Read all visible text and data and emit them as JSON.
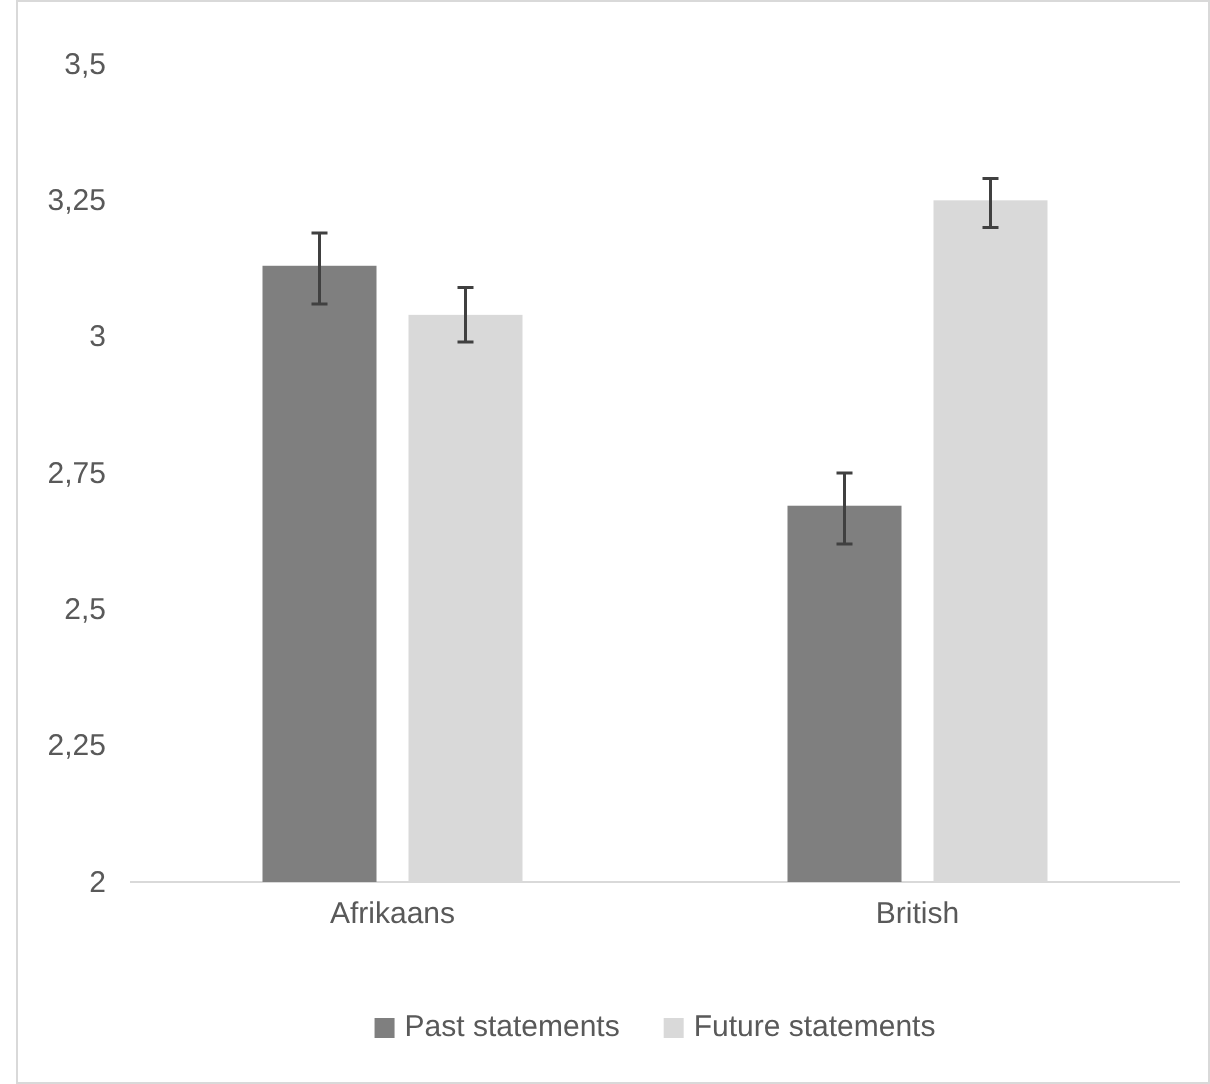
{
  "chart_data": {
    "type": "bar",
    "categories": [
      "Afrikaans",
      "British"
    ],
    "series": [
      {
        "name": "Past statements",
        "color": "#7f7f7f",
        "values": [
          3.13,
          2.69
        ],
        "errors": [
          [
            3.06,
            3.19
          ],
          [
            2.62,
            2.75
          ]
        ]
      },
      {
        "name": "Future statements",
        "color": "#d9d9d9",
        "values": [
          3.04,
          3.25
        ],
        "errors": [
          [
            2.99,
            3.09
          ],
          [
            3.2,
            3.29
          ]
        ]
      }
    ],
    "ylim": [
      2,
      3.5
    ],
    "yticks": [
      2,
      {
        "value": 2.25,
        "label": "2,25"
      },
      {
        "value": 2.5,
        "label": "2,5"
      },
      {
        "value": 2.75,
        "label": "2,75"
      },
      3,
      {
        "value": 3.25,
        "label": "3,25"
      },
      {
        "value": 3.5,
        "label": "3,5"
      }
    ],
    "grid": false,
    "legend": "bottom"
  }
}
